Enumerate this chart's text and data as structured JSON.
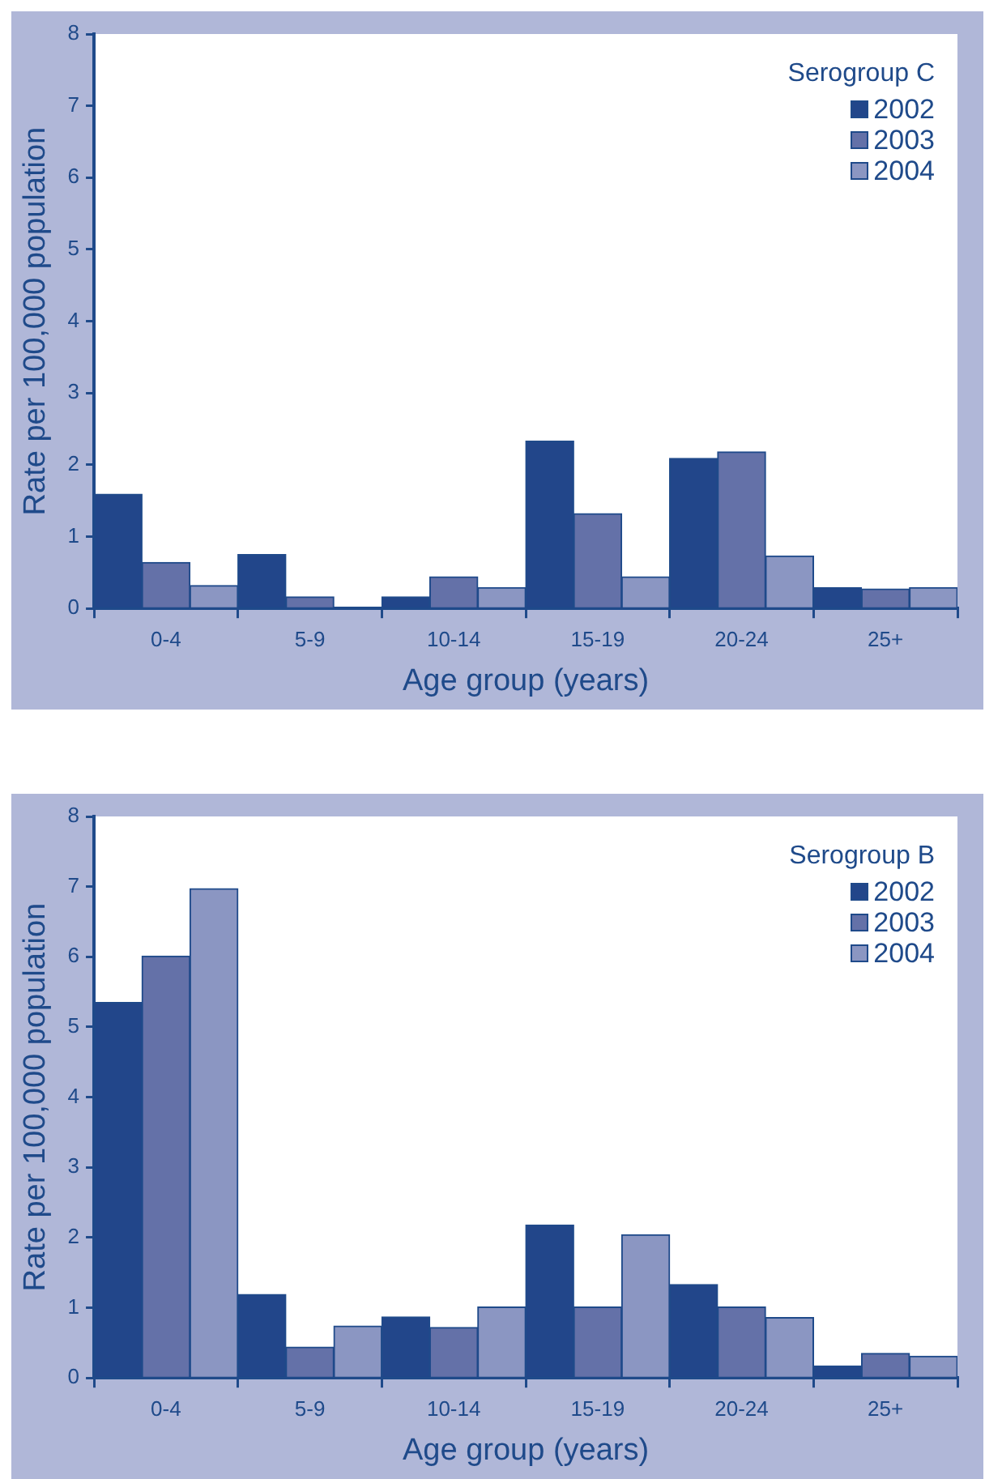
{
  "chart_data": [
    {
      "type": "bar",
      "legend_title": "Serogroup C",
      "xlabel": "Age group (years)",
      "ylabel": "Rate per 100,000 population",
      "categories": [
        "0-4",
        "5-9",
        "10-14",
        "15-19",
        "20-24",
        "25+"
      ],
      "series": [
        {
          "name": "2002",
          "color": "#22468a",
          "values": [
            1.59,
            0.75,
            0.16,
            2.33,
            2.09,
            0.29
          ]
        },
        {
          "name": "2003",
          "color": "#6471a8",
          "values": [
            0.64,
            0.16,
            0.44,
            1.32,
            2.18,
            0.27
          ]
        },
        {
          "name": "2004",
          "color": "#8b96c2",
          "values": [
            0.32,
            0,
            0.29,
            0.44,
            0.73,
            0.29
          ]
        }
      ],
      "ylim": [
        0,
        8
      ],
      "yticks": [
        0,
        1,
        2,
        3,
        4,
        5,
        6,
        7,
        8
      ],
      "grid": false,
      "legend": "top right"
    },
    {
      "type": "bar",
      "legend_title": "Serogroup B",
      "xlabel": "Age group (years)",
      "ylabel": "Rate per 100,000 population",
      "categories": [
        "0-4",
        "5-9",
        "10-14",
        "15-19",
        "20-24",
        "25+"
      ],
      "series": [
        {
          "name": "2002",
          "color": "#22468a",
          "values": [
            5.35,
            1.19,
            0.87,
            2.18,
            1.33,
            0.17
          ]
        },
        {
          "name": "2003",
          "color": "#6471a8",
          "values": [
            6.01,
            0.44,
            0.72,
            1.01,
            1.01,
            0.35
          ]
        },
        {
          "name": "2004",
          "color": "#8b96c2",
          "values": [
            6.97,
            0.74,
            1.01,
            2.04,
            0.86,
            0.31
          ]
        }
      ],
      "ylim": [
        0,
        8
      ],
      "yticks": [
        0,
        1,
        2,
        3,
        4,
        5,
        6,
        7,
        8
      ],
      "grid": false,
      "legend": "top right"
    }
  ]
}
